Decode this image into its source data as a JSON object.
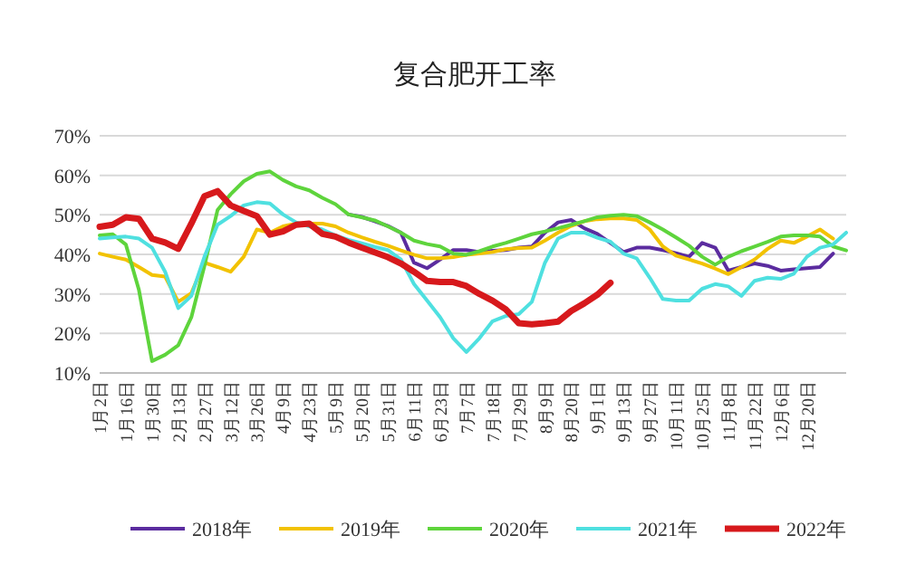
{
  "chart_data": {
    "type": "line",
    "title": "复合肥开工率",
    "categories": [
      "1月2日",
      null,
      "1月16日",
      null,
      "1月30日",
      null,
      "2月13日",
      null,
      "2月27日",
      null,
      "3月12日",
      null,
      "3月26日",
      null,
      "4月9日",
      null,
      "4月23日",
      null,
      "5月9日",
      null,
      "5月20日",
      null,
      "5月31日",
      null,
      "6月11日",
      null,
      "6月23日",
      null,
      "7月7日",
      null,
      "7月18日",
      null,
      "7月29日",
      null,
      "8月9日",
      null,
      "8月20日",
      null,
      "9月1日",
      null,
      "9月13日",
      null,
      "9月27日",
      null,
      "10月11日",
      null,
      "10月25日",
      null,
      "11月8日",
      null,
      "11月22日",
      null,
      "12月6日",
      null,
      "12月20日",
      null,
      null,
      null
    ],
    "series": [
      {
        "name": "2018年",
        "color": "#5b2c9f",
        "values": [
          null,
          null,
          null,
          null,
          null,
          null,
          null,
          null,
          null,
          null,
          null,
          null,
          null,
          null,
          null,
          null,
          null,
          null,
          null,
          50.1,
          49.5,
          48.4,
          47.2,
          45.5,
          37.9,
          36.5,
          38.7,
          41.1,
          41.1,
          40.6,
          40.9,
          41.1,
          41.7,
          42,
          45.5,
          48.1,
          48.7,
          46.6,
          45.2,
          42.9,
          40.6,
          41.7,
          41.7,
          41.1,
          40.3,
          39.4,
          42.9,
          41.7,
          35.9,
          36.8,
          37.7,
          37.1,
          35.9,
          36.2,
          36.5,
          36.8,
          40.2,
          null
        ]
      },
      {
        "name": "2019年",
        "color": "#f2c200",
        "values": [
          40.2,
          39.4,
          38.7,
          36.8,
          34.8,
          34.4,
          28,
          30.2,
          37.9,
          36.8,
          35.6,
          39.4,
          46.3,
          45.5,
          47.1,
          47.8,
          47.8,
          47.8,
          47.1,
          45.5,
          44.3,
          43.2,
          42.2,
          41,
          39.9,
          39,
          39,
          39.3,
          39.9,
          40.2,
          40.6,
          41.3,
          41.6,
          41.7,
          43.5,
          45.5,
          47.2,
          48.4,
          48.9,
          49.1,
          49.1,
          48.7,
          46.3,
          42,
          39.7,
          38.7,
          37.7,
          36.4,
          35,
          36.8,
          38.7,
          41.4,
          43.5,
          42.9,
          44.5,
          46.3,
          44,
          null
        ]
      },
      {
        "name": "2020年",
        "color": "#5ed43c",
        "values": [
          44.8,
          45.1,
          42.5,
          31,
          13,
          14.6,
          17,
          24.1,
          37.1,
          51.2,
          55.2,
          58.5,
          60.4,
          61,
          58.8,
          57.2,
          56.2,
          54.3,
          52.7,
          50.1,
          49.4,
          48.6,
          47.1,
          45.5,
          43.5,
          42.6,
          42,
          40.2,
          39.9,
          40.8,
          42,
          42.9,
          44,
          45.1,
          45.8,
          46.6,
          47.5,
          48.4,
          49.4,
          49.8,
          50,
          49.7,
          48.1,
          46.3,
          44.3,
          42.2,
          39.4,
          37.4,
          39.4,
          40.8,
          42,
          43.2,
          44.5,
          44.8,
          44.8,
          44.5,
          42,
          41
        ]
      },
      {
        "name": "2021年",
        "color": "#4fe0e0",
        "values": [
          44,
          44.3,
          44.5,
          44,
          41.7,
          35.6,
          26.4,
          29.5,
          39.4,
          47.5,
          49.7,
          52.4,
          53.2,
          52.9,
          50.1,
          48.1,
          47.1,
          46.3,
          44.8,
          43.7,
          42.8,
          41.9,
          41.1,
          38.7,
          32.5,
          28.3,
          24.1,
          18.8,
          15.3,
          18.8,
          23.1,
          24.4,
          24.9,
          28,
          37.9,
          44,
          45.5,
          45.5,
          44.2,
          43.2,
          40.2,
          39,
          34.1,
          28.7,
          28.3,
          28.3,
          31.3,
          32.5,
          31.9,
          29.5,
          33.3,
          34.1,
          33.8,
          35.1,
          39.4,
          41.7,
          42.5,
          45.5
        ]
      },
      {
        "name": "2022年",
        "color": "#d7191c",
        "values": [
          47,
          47.5,
          49.4,
          49,
          44,
          43,
          41.4,
          47.8,
          54.7,
          56,
          52.4,
          51,
          49.7,
          45,
          45.8,
          47.5,
          47.8,
          45.2,
          44.5,
          43,
          41.7,
          40.5,
          39.3,
          37.7,
          35.6,
          33.3,
          33,
          33,
          32,
          30,
          28.3,
          26.1,
          22.6,
          22.3,
          22.6,
          23,
          25.7,
          27.6,
          29.8,
          32.8,
          null,
          null,
          null,
          null,
          null,
          null,
          null,
          null,
          null,
          null,
          null,
          null,
          null,
          null,
          null,
          null,
          null,
          null
        ]
      }
    ],
    "ylim": [
      10,
      70
    ],
    "yticks": [
      {
        "value": 10,
        "label": "10%"
      },
      {
        "value": 20,
        "label": "20%"
      },
      {
        "value": 30,
        "label": "30%"
      },
      {
        "value": 40,
        "label": "40%"
      },
      {
        "value": 50,
        "label": "50%"
      },
      {
        "value": 60,
        "label": "60%"
      },
      {
        "value": 70,
        "label": "70%"
      }
    ],
    "grid": "y",
    "legend": "bottom",
    "marker": "none",
    "line_style": "solid"
  }
}
